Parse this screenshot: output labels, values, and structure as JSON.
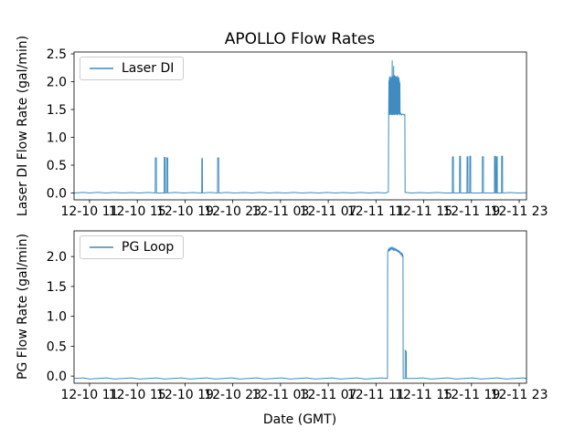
{
  "figure_title": "APOLLO Flow Rates",
  "accent_color": "#1f77b4",
  "chart_data": [
    {
      "type": "line",
      "title": "APOLLO Flow Rates",
      "ylabel": "Laser DI Flow Rate (gal/min)",
      "xlim": [
        -1.3,
        36.61
      ],
      "ylim": [
        -0.123,
        2.533
      ],
      "x_unit": "hours since 12-10 11:00 GMT",
      "grid": false,
      "legend_position": "upper left",
      "xtick_values": [
        0,
        4,
        8,
        12,
        16,
        20,
        24,
        28,
        32,
        36
      ],
      "xtick_labels": [
        "12-10 11",
        "12-10 15",
        "12-10 19",
        "12-10 23",
        "12-11 03",
        "12-11 07",
        "12-11 11",
        "12-11 15",
        "12-11 19",
        "12-11 23"
      ],
      "ytick_values": [
        0.0,
        0.5,
        1.0,
        1.5,
        2.0,
        2.5
      ],
      "ytick_labels": [
        "0.0",
        "0.5",
        "1.0",
        "1.5",
        "2.0",
        "2.5"
      ],
      "series": [
        {
          "name": "Laser DI",
          "color": "#1f77b4",
          "points": [
            [
              -1.3,
              0.0
            ],
            [
              -0.5,
              0.01
            ],
            [
              0.0,
              0.0
            ],
            [
              0.7,
              0.012
            ],
            [
              1.4,
              0.0
            ],
            [
              2.1,
              0.01
            ],
            [
              2.8,
              0.0
            ],
            [
              3.5,
              0.008
            ],
            [
              4.2,
              0.0
            ],
            [
              4.9,
              0.01
            ],
            [
              5.5,
              0.0
            ],
            [
              5.51,
              0.63
            ],
            [
              5.6,
              0.63
            ],
            [
              5.61,
              0.0
            ],
            [
              6.25,
              0.0
            ],
            [
              6.26,
              0.64
            ],
            [
              6.33,
              0.64
            ],
            [
              6.34,
              0.0
            ],
            [
              6.45,
              0.0
            ],
            [
              6.46,
              0.63
            ],
            [
              6.55,
              0.63
            ],
            [
              6.56,
              0.0
            ],
            [
              7.2,
              0.01
            ],
            [
              7.9,
              0.0
            ],
            [
              8.6,
              0.008
            ],
            [
              9.4,
              0.0
            ],
            [
              9.41,
              0.62
            ],
            [
              9.45,
              0.62
            ],
            [
              9.46,
              0.0
            ],
            [
              10.1,
              0.01
            ],
            [
              10.72,
              0.0
            ],
            [
              10.73,
              0.63
            ],
            [
              10.82,
              0.63
            ],
            [
              10.83,
              0.0
            ],
            [
              11.5,
              0.01
            ],
            [
              12.2,
              0.0
            ],
            [
              12.9,
              0.008
            ],
            [
              13.6,
              0.0
            ],
            [
              14.3,
              0.01
            ],
            [
              15.0,
              0.0
            ],
            [
              15.7,
              0.008
            ],
            [
              16.4,
              0.0
            ],
            [
              17.1,
              0.01
            ],
            [
              17.8,
              0.0
            ],
            [
              18.5,
              0.008
            ],
            [
              19.2,
              0.0
            ],
            [
              19.9,
              0.01
            ],
            [
              20.6,
              0.0
            ],
            [
              21.3,
              0.008
            ],
            [
              22.0,
              0.0
            ],
            [
              22.7,
              0.01
            ],
            [
              23.4,
              0.0
            ],
            [
              24.1,
              0.008
            ],
            [
              24.8,
              0.0
            ],
            [
              25.04,
              0.02
            ],
            [
              25.06,
              1.4
            ],
            [
              25.08,
              2.02
            ],
            [
              25.1,
              1.43
            ],
            [
              25.12,
              2.08
            ],
            [
              25.14,
              1.4
            ],
            [
              25.16,
              2.05
            ],
            [
              25.18,
              1.44
            ],
            [
              25.2,
              2.1
            ],
            [
              25.22,
              1.41
            ],
            [
              25.24,
              2.04
            ],
            [
              25.26,
              1.45
            ],
            [
              25.28,
              2.08
            ],
            [
              25.3,
              1.4
            ],
            [
              25.32,
              2.06
            ],
            [
              25.34,
              1.42
            ],
            [
              25.36,
              2.38
            ],
            [
              25.38,
              1.4
            ],
            [
              25.4,
              2.05
            ],
            [
              25.42,
              1.44
            ],
            [
              25.44,
              2.1
            ],
            [
              25.46,
              1.41
            ],
            [
              25.48,
              2.28
            ],
            [
              25.5,
              1.4
            ],
            [
              25.52,
              2.07
            ],
            [
              25.54,
              1.43
            ],
            [
              25.56,
              2.12
            ],
            [
              25.58,
              1.4
            ],
            [
              25.6,
              2.08
            ],
            [
              25.62,
              1.45
            ],
            [
              25.64,
              2.1
            ],
            [
              25.66,
              1.41
            ],
            [
              25.68,
              2.05
            ],
            [
              25.7,
              1.44
            ],
            [
              25.72,
              2.09
            ],
            [
              25.74,
              1.4
            ],
            [
              25.76,
              2.06
            ],
            [
              25.78,
              1.43
            ],
            [
              25.8,
              2.11
            ],
            [
              25.82,
              1.4
            ],
            [
              25.84,
              2.07
            ],
            [
              25.86,
              1.44
            ],
            [
              25.88,
              2.03
            ],
            [
              25.9,
              1.41
            ],
            [
              25.92,
              2.08
            ],
            [
              25.94,
              1.45
            ],
            [
              25.96,
              2.02
            ],
            [
              25.98,
              1.42
            ],
            [
              26.0,
              1.98
            ],
            [
              26.02,
              1.41
            ],
            [
              26.08,
              1.43
            ],
            [
              26.15,
              1.4
            ],
            [
              26.25,
              1.42
            ],
            [
              26.35,
              1.4
            ],
            [
              26.42,
              1.41
            ],
            [
              26.44,
              0.01
            ],
            [
              27.0,
              0.0
            ],
            [
              27.7,
              0.008
            ],
            [
              28.4,
              0.0
            ],
            [
              29.1,
              0.01
            ],
            [
              29.8,
              0.0
            ],
            [
              30.4,
              0.0
            ],
            [
              30.41,
              0.65
            ],
            [
              30.48,
              0.65
            ],
            [
              30.49,
              0.0
            ],
            [
              31.0,
              0.0
            ],
            [
              31.01,
              0.66
            ],
            [
              31.08,
              0.66
            ],
            [
              31.09,
              0.0
            ],
            [
              31.62,
              0.0
            ],
            [
              31.63,
              0.65
            ],
            [
              31.7,
              0.65
            ],
            [
              31.71,
              0.0
            ],
            [
              31.85,
              0.0
            ],
            [
              31.86,
              0.66
            ],
            [
              31.93,
              0.66
            ],
            [
              31.94,
              0.0
            ],
            [
              32.9,
              0.0
            ],
            [
              32.91,
              0.65
            ],
            [
              33.0,
              0.65
            ],
            [
              33.01,
              0.0
            ],
            [
              33.92,
              0.0
            ],
            [
              33.93,
              0.66
            ],
            [
              34.0,
              0.66
            ],
            [
              34.01,
              0.0
            ],
            [
              34.08,
              0.0
            ],
            [
              34.09,
              0.65
            ],
            [
              34.16,
              0.65
            ],
            [
              34.17,
              0.0
            ],
            [
              34.52,
              0.0
            ],
            [
              34.53,
              0.66
            ],
            [
              34.6,
              0.66
            ],
            [
              34.61,
              0.0
            ],
            [
              35.2,
              0.008
            ],
            [
              35.9,
              0.0
            ],
            [
              36.61,
              0.005
            ]
          ]
        }
      ]
    },
    {
      "type": "line",
      "ylabel": "PG Flow Rate (gal/min)",
      "xlabel": "Date (GMT)",
      "xlim": [
        -1.3,
        36.61
      ],
      "ylim": [
        -0.12,
        2.43
      ],
      "x_unit": "hours since 12-10 11:00 GMT",
      "grid": false,
      "legend_position": "upper left",
      "xtick_values": [
        0,
        4,
        8,
        12,
        16,
        20,
        24,
        28,
        32,
        36
      ],
      "xtick_labels": [
        "12-10 11",
        "12-10 15",
        "12-10 19",
        "12-10 23",
        "12-11 03",
        "12-11 07",
        "12-11 11",
        "12-11 15",
        "12-11 19",
        "12-11 23"
      ],
      "ytick_values": [
        0.0,
        0.5,
        1.0,
        1.5,
        2.0
      ],
      "ytick_labels": [
        "0.0",
        "0.5",
        "1.0",
        "1.5",
        "2.0"
      ],
      "series": [
        {
          "name": "PG Loop",
          "color": "#1f77b4",
          "points": [
            [
              -1.3,
              -0.04
            ],
            [
              -0.5,
              -0.03
            ],
            [
              0.0,
              -0.05
            ],
            [
              0.7,
              -0.04
            ],
            [
              1.4,
              -0.03
            ],
            [
              2.1,
              -0.05
            ],
            [
              2.8,
              -0.04
            ],
            [
              3.5,
              -0.03
            ],
            [
              4.2,
              -0.05
            ],
            [
              4.9,
              -0.04
            ],
            [
              5.6,
              -0.03
            ],
            [
              6.3,
              -0.05
            ],
            [
              7.0,
              -0.04
            ],
            [
              7.7,
              -0.03
            ],
            [
              8.4,
              -0.05
            ],
            [
              9.1,
              -0.04
            ],
            [
              9.8,
              -0.03
            ],
            [
              10.5,
              -0.05
            ],
            [
              11.2,
              -0.04
            ],
            [
              11.9,
              -0.03
            ],
            [
              12.6,
              -0.05
            ],
            [
              13.3,
              -0.04
            ],
            [
              14.0,
              -0.03
            ],
            [
              14.7,
              -0.05
            ],
            [
              15.4,
              -0.04
            ],
            [
              16.1,
              -0.03
            ],
            [
              16.8,
              -0.05
            ],
            [
              17.5,
              -0.04
            ],
            [
              18.2,
              -0.03
            ],
            [
              18.9,
              -0.05
            ],
            [
              19.6,
              -0.04
            ],
            [
              20.3,
              -0.03
            ],
            [
              21.0,
              -0.05
            ],
            [
              21.7,
              -0.04
            ],
            [
              22.4,
              -0.03
            ],
            [
              23.1,
              -0.05
            ],
            [
              23.8,
              -0.04
            ],
            [
              24.5,
              -0.03
            ],
            [
              24.9,
              -0.04
            ],
            [
              24.96,
              -0.04
            ],
            [
              24.98,
              2.06
            ],
            [
              25.0,
              2.1
            ],
            [
              25.04,
              2.12
            ],
            [
              25.08,
              2.09
            ],
            [
              25.12,
              2.13
            ],
            [
              25.16,
              2.11
            ],
            [
              25.2,
              2.14
            ],
            [
              25.24,
              2.12
            ],
            [
              25.28,
              2.15
            ],
            [
              25.32,
              2.13
            ],
            [
              25.36,
              2.15
            ],
            [
              25.4,
              2.12
            ],
            [
              25.44,
              2.14
            ],
            [
              25.48,
              2.11
            ],
            [
              25.52,
              2.13
            ],
            [
              25.56,
              2.1
            ],
            [
              25.6,
              2.13
            ],
            [
              25.64,
              2.11
            ],
            [
              25.68,
              2.12
            ],
            [
              25.72,
              2.09
            ],
            [
              25.76,
              2.12
            ],
            [
              25.8,
              2.08
            ],
            [
              25.84,
              2.11
            ],
            [
              25.88,
              2.07
            ],
            [
              25.92,
              2.1
            ],
            [
              25.96,
              2.06
            ],
            [
              26.0,
              2.09
            ],
            [
              26.04,
              2.04
            ],
            [
              26.08,
              2.07
            ],
            [
              26.12,
              2.03
            ],
            [
              26.16,
              2.05
            ],
            [
              26.2,
              2.01
            ],
            [
              26.24,
              2.03
            ],
            [
              26.26,
              2.0
            ],
            [
              26.28,
              -0.04
            ],
            [
              26.44,
              -0.04
            ],
            [
              26.45,
              0.43
            ],
            [
              26.54,
              0.41
            ],
            [
              26.55,
              -0.04
            ],
            [
              27.2,
              -0.04
            ],
            [
              27.9,
              -0.03
            ],
            [
              28.6,
              -0.05
            ],
            [
              29.3,
              -0.04
            ],
            [
              30.0,
              -0.03
            ],
            [
              30.7,
              -0.05
            ],
            [
              31.4,
              -0.04
            ],
            [
              32.1,
              -0.03
            ],
            [
              32.8,
              -0.05
            ],
            [
              33.5,
              -0.04
            ],
            [
              34.2,
              -0.03
            ],
            [
              34.9,
              -0.05
            ],
            [
              35.6,
              -0.04
            ],
            [
              36.3,
              -0.03
            ],
            [
              36.61,
              -0.04
            ]
          ]
        }
      ]
    }
  ]
}
